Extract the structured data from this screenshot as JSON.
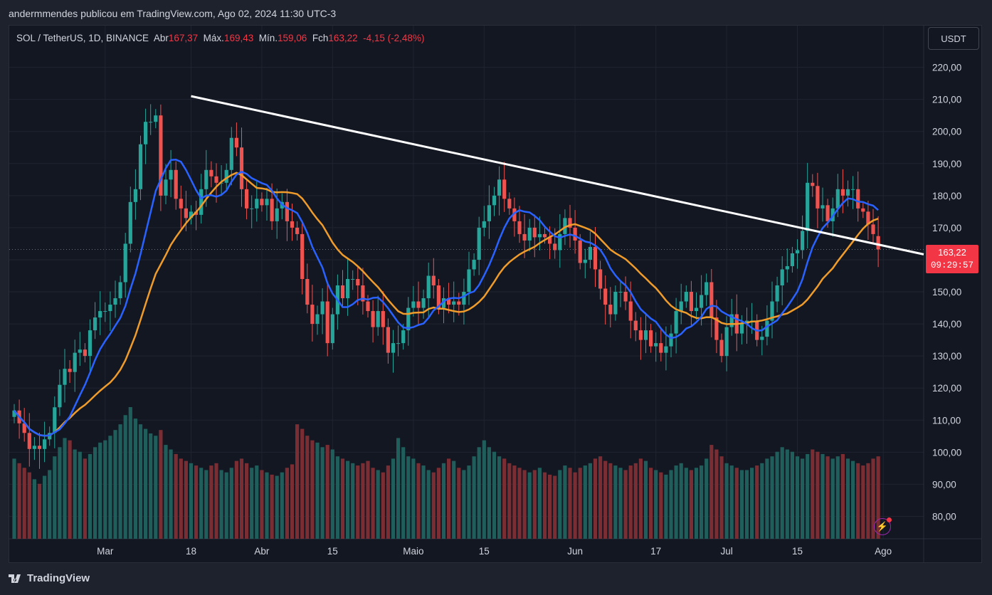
{
  "header": {
    "publisher_line": "andermmendes publicou em TradingView.com, Ago 02, 2024 11:30 UTC-3"
  },
  "legend": {
    "symbol": "SOL / TetherUS, 1D, BINANCE",
    "open_label": "Abr",
    "open": "167,37",
    "high_label": "Máx.",
    "high": "169,43",
    "low_label": "Mín.",
    "low": "159,06",
    "close_label": "Fch",
    "close": "163,22",
    "change": "-4,15 (-2,48%)"
  },
  "currency_button": "USDT",
  "last_price": {
    "price": "163,22",
    "countdown": "09:29:57"
  },
  "footer": {
    "brand": "TradingView"
  },
  "colors": {
    "up": "#26a69a",
    "down": "#ef5350",
    "ma_fast": "#2962ff",
    "ma_slow": "#f09c2b",
    "trendline": "#ffffff",
    "background": "#131722",
    "grid": "#1f2430"
  },
  "chart_data": {
    "type": "candlestick",
    "symbol": "SOL / TetherUS",
    "interval": "1D",
    "exchange": "BINANCE",
    "ylim": [
      73,
      233
    ],
    "y_ticks": [
      80,
      90,
      100,
      110,
      120,
      130,
      140,
      150,
      160,
      170,
      180,
      190,
      200,
      210,
      220
    ],
    "y_tick_labels": [
      "80,00",
      "90,00",
      "100,00",
      "110,00",
      "120,00",
      "130,00",
      "140,00",
      "150,00",
      "160,00",
      "170,00",
      "180,00",
      "190,00",
      "200,00",
      "210,00",
      "220,00"
    ],
    "x_ticks": [
      {
        "label": "Mar",
        "day": 18
      },
      {
        "label": "18",
        "day": 35
      },
      {
        "label": "Abr",
        "day": 49
      },
      {
        "label": "15",
        "day": 63
      },
      {
        "label": "Maio",
        "day": 79
      },
      {
        "label": "15",
        "day": 93
      },
      {
        "label": "Jun",
        "day": 111
      },
      {
        "label": "17",
        "day": 127
      },
      {
        "label": "Jul",
        "day": 141
      },
      {
        "label": "15",
        "day": 155
      },
      {
        "label": "Ago",
        "day": 172
      }
    ],
    "start_date": "2024-02-12",
    "closes": [
      113,
      109,
      106,
      101,
      102,
      101,
      104,
      106,
      114,
      121,
      126,
      125,
      131,
      132,
      130,
      138,
      142,
      144,
      144,
      146,
      148,
      153,
      165,
      178,
      182,
      196,
      203,
      203,
      205,
      180,
      185,
      188,
      179,
      176,
      173,
      175,
      174,
      182,
      188,
      186,
      184,
      184,
      188,
      198,
      195,
      182,
      176,
      176,
      179,
      177,
      179,
      172,
      176,
      178,
      172,
      170,
      168,
      154,
      146,
      140,
      143,
      147,
      134,
      143,
      152,
      148,
      154,
      154,
      152,
      147,
      144,
      139,
      144,
      139,
      131,
      134,
      134,
      138,
      145,
      147,
      145,
      148,
      155,
      152,
      145,
      148,
      146,
      147,
      146,
      150,
      157,
      160,
      170,
      172,
      177,
      180,
      185,
      179,
      176,
      172,
      168,
      166,
      170,
      167,
      168,
      167,
      165,
      163,
      168,
      173,
      170,
      166,
      159,
      160,
      164,
      157,
      151,
      146,
      143,
      150,
      150,
      147,
      141,
      138,
      135,
      138,
      133,
      134,
      131,
      133,
      137,
      144,
      147,
      150,
      144,
      145,
      149,
      153,
      142,
      135,
      130,
      139,
      143,
      137,
      140,
      141,
      141,
      135,
      136,
      141,
      147,
      152,
      157,
      158,
      162,
      163,
      169,
      184,
      183,
      176,
      177,
      172,
      176,
      182,
      180,
      182,
      182,
      176,
      175,
      171,
      168,
      163.22
    ],
    "opens": [
      111,
      113,
      109,
      106,
      101,
      102,
      101,
      104,
      106,
      114,
      121,
      126,
      125,
      131,
      132,
      130,
      138,
      142,
      144,
      144,
      146,
      148,
      153,
      165,
      178,
      182,
      196,
      203,
      203,
      205,
      180,
      185,
      188,
      179,
      176,
      173,
      175,
      174,
      182,
      188,
      186,
      184,
      184,
      188,
      198,
      195,
      182,
      176,
      176,
      179,
      177,
      179,
      172,
      176,
      178,
      172,
      170,
      168,
      154,
      146,
      140,
      143,
      147,
      134,
      143,
      152,
      148,
      154,
      154,
      152,
      147,
      144,
      139,
      144,
      139,
      131,
      134,
      134,
      138,
      145,
      147,
      145,
      148,
      155,
      152,
      145,
      148,
      146,
      147,
      146,
      150,
      157,
      160,
      170,
      172,
      177,
      180,
      185,
      179,
      176,
      172,
      168,
      166,
      170,
      167,
      168,
      167,
      165,
      163,
      168,
      173,
      170,
      166,
      159,
      160,
      164,
      157,
      151,
      146,
      143,
      150,
      150,
      147,
      141,
      138,
      135,
      138,
      133,
      134,
      131,
      133,
      137,
      144,
      147,
      150,
      144,
      145,
      149,
      153,
      142,
      135,
      130,
      139,
      143,
      137,
      140,
      141,
      141,
      135,
      136,
      141,
      147,
      152,
      157,
      158,
      162,
      163,
      169,
      184,
      183,
      176,
      177,
      172,
      176,
      182,
      180,
      182,
      182,
      176,
      175,
      171,
      167.37
    ],
    "volumes": [
      70,
      66,
      62,
      58,
      52,
      48,
      55,
      60,
      72,
      80,
      88,
      86,
      78,
      76,
      70,
      74,
      80,
      84,
      86,
      90,
      95,
      100,
      108,
      115,
      105,
      100,
      96,
      92,
      90,
      95,
      82,
      78,
      74,
      70,
      68,
      66,
      64,
      62,
      60,
      64,
      66,
      60,
      58,
      62,
      68,
      70,
      66,
      62,
      64,
      60,
      58,
      56,
      55,
      58,
      62,
      65,
      100,
      96,
      90,
      86,
      84,
      80,
      82,
      78,
      72,
      70,
      68,
      66,
      64,
      66,
      68,
      62,
      60,
      58,
      64,
      70,
      88,
      80,
      72,
      70,
      66,
      64,
      60,
      58,
      62,
      66,
      70,
      68,
      62,
      60,
      64,
      72,
      80,
      86,
      80,
      76,
      72,
      70,
      66,
      64,
      62,
      60,
      58,
      60,
      62,
      58,
      56,
      55,
      60,
      64,
      62,
      58,
      62,
      64,
      66,
      70,
      72,
      68,
      66,
      64,
      62,
      60,
      64,
      66,
      70,
      68,
      62,
      60,
      58,
      56,
      60,
      64,
      66,
      62,
      60,
      62,
      64,
      70,
      82,
      78,
      72,
      66,
      64,
      62,
      60,
      60,
      62,
      64,
      66,
      70,
      72,
      76,
      80,
      78,
      76,
      72,
      70,
      74,
      78,
      76,
      74,
      72,
      70,
      72,
      74,
      70,
      68,
      66,
      64,
      66,
      70,
      72
    ],
    "trendline": [
      {
        "day": 35,
        "price": 211
      },
      {
        "day": 182,
        "price": 161
      }
    ]
  }
}
